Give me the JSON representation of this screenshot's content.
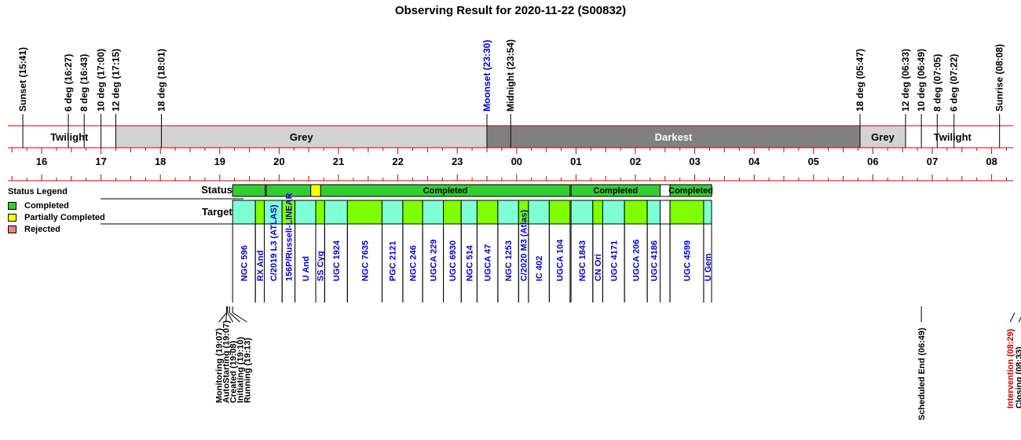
{
  "title": "Observing Result for 2020-11-22 (S00832)",
  "colors": {
    "axis_red": "#cc0000",
    "grey": "#d3d3d3",
    "darkest": "#808080",
    "completed": "#33cc33",
    "partial": "#ffff00",
    "rejected": "#f08080",
    "target_cyan": "#7fffd4",
    "target_lime": "#7fff00",
    "moonset_blue": "#0000cc",
    "intervention_red": "#cc0000",
    "target_label_blue": "#0000cc"
  },
  "legend": {
    "title": "Status Legend",
    "items": [
      {
        "label": "Completed",
        "color": "#33cc33"
      },
      {
        "label": "Partially Completed",
        "color": "#ffff00"
      },
      {
        "label": "Rejected",
        "color": "#f08080"
      }
    ]
  },
  "row_labels": {
    "status": "Status",
    "targets": "Targets"
  },
  "chart_data": {
    "type": "timeline",
    "title": "Observing Result for 2020-11-22 (S00832)",
    "hour_ticks": [
      "16",
      "17",
      "18",
      "19",
      "20",
      "21",
      "22",
      "23",
      "00",
      "01",
      "02",
      "03",
      "04",
      "05",
      "06",
      "07",
      "08"
    ],
    "top_events": [
      {
        "label": "Sunset (15:41)",
        "t": "15:41"
      },
      {
        "label": "6 deg (16:27)",
        "t": "16:27"
      },
      {
        "label": "8 deg (16:43)",
        "t": "16:43"
      },
      {
        "label": "10 deg (17:00)",
        "t": "17:00"
      },
      {
        "label": "12 deg (17:15)",
        "t": "17:15"
      },
      {
        "label": "18 deg (18:01)",
        "t": "18:01"
      },
      {
        "label": "Moonset (23:30)",
        "t": "23:30",
        "color": "#0000cc"
      },
      {
        "label": "Midnight (23:54)",
        "t": "23:54"
      },
      {
        "label": "18 deg (05:47)",
        "t": "05:47"
      },
      {
        "label": "12 deg (06:33)",
        "t": "06:33"
      },
      {
        "label": "10 deg (06:49)",
        "t": "06:49"
      },
      {
        "label": "8 deg (07:05)",
        "t": "07:05"
      },
      {
        "label": "6 deg (07:22)",
        "t": "07:22"
      },
      {
        "label": "Sunrise (08:08)",
        "t": "08:08"
      }
    ],
    "sky_bands": [
      {
        "label": "Twilight",
        "start": "15:41",
        "end": "17:15",
        "shade": "white"
      },
      {
        "label": "Grey",
        "start": "17:15",
        "end": "23:30",
        "shade": "grey"
      },
      {
        "label": "Darkest",
        "start": "23:30",
        "end": "05:47",
        "shade": "darkest"
      },
      {
        "label": "Grey",
        "start": "05:47",
        "end": "06:33",
        "shade": "grey"
      },
      {
        "label": "Twilight",
        "start": "06:33",
        "end": "08:08",
        "shade": "white"
      }
    ],
    "status_segments": [
      {
        "label": "",
        "start": "19:13",
        "end": "19:46",
        "status": "completed"
      },
      {
        "label": "",
        "start": "19:47",
        "end": "20:32",
        "status": "completed"
      },
      {
        "label": "",
        "start": "20:32",
        "end": "20:42",
        "status": "partial"
      },
      {
        "label": "Completed",
        "start": "20:42",
        "end": "00:54",
        "status": "completed"
      },
      {
        "label": "Completed",
        "start": "00:55",
        "end": "02:25",
        "status": "completed"
      },
      {
        "label": "",
        "start": "02:25",
        "end": "02:35",
        "status": "none"
      },
      {
        "label": "Completed",
        "start": "02:35",
        "end": "03:17",
        "status": "completed"
      }
    ],
    "targets": [
      {
        "name": "NGC 596",
        "start": "19:13",
        "end": "19:36",
        "fill": "cyan"
      },
      {
        "name": "RX And",
        "start": "19:36",
        "end": "19:45",
        "fill": "lime"
      },
      {
        "name": "C/2019 L3 (ATLAS)",
        "start": "19:45",
        "end": "20:03",
        "fill": "cyan"
      },
      {
        "name": "156P/Russell-LINEAR",
        "start": "20:03",
        "end": "20:16",
        "fill": "lime"
      },
      {
        "name": "U And",
        "start": "20:16",
        "end": "20:37",
        "fill": "cyan"
      },
      {
        "name": "SS Cyg",
        "start": "20:37",
        "end": "20:46",
        "fill": "lime"
      },
      {
        "name": "UGC 1924",
        "start": "20:46",
        "end": "21:09",
        "fill": "cyan"
      },
      {
        "name": "NGC 7635",
        "start": "21:09",
        "end": "21:44",
        "fill": "lime"
      },
      {
        "name": "PGC 2121",
        "start": "21:44",
        "end": "22:05",
        "fill": "cyan"
      },
      {
        "name": "NGC 246",
        "start": "22:05",
        "end": "22:25",
        "fill": "lime"
      },
      {
        "name": "UGCA 229",
        "start": "22:25",
        "end": "22:46",
        "fill": "cyan"
      },
      {
        "name": "UGC 6930",
        "start": "22:46",
        "end": "23:04",
        "fill": "lime"
      },
      {
        "name": "NGC 514",
        "start": "23:04",
        "end": "23:20",
        "fill": "cyan"
      },
      {
        "name": "UGCA 47",
        "start": "23:20",
        "end": "23:41",
        "fill": "lime"
      },
      {
        "name": "NGC 1253",
        "start": "23:41",
        "end": "24:02",
        "fill": "cyan"
      },
      {
        "name": "C/2020 M3 (Atlas)",
        "start": "24:02",
        "end": "24:12",
        "fill": "lime"
      },
      {
        "name": "IC 402",
        "start": "24:12",
        "end": "24:33",
        "fill": "cyan"
      },
      {
        "name": "UGCA 104",
        "start": "24:33",
        "end": "24:54",
        "fill": "lime"
      },
      {
        "name": "NGC 1843",
        "start": "24:55",
        "end": "25:17",
        "fill": "cyan"
      },
      {
        "name": "CN Ori",
        "start": "25:17",
        "end": "25:27",
        "fill": "lime"
      },
      {
        "name": "UGC 4171",
        "start": "25:27",
        "end": "25:49",
        "fill": "cyan"
      },
      {
        "name": "UGCA 206",
        "start": "25:49",
        "end": "26:12",
        "fill": "lime"
      },
      {
        "name": "UGC 4186",
        "start": "26:12",
        "end": "26:25",
        "fill": "cyan"
      },
      {
        "name": "",
        "start": "26:25",
        "end": "26:35",
        "fill": "none"
      },
      {
        "name": "UGC 4599",
        "start": "26:35",
        "end": "27:09",
        "fill": "lime"
      },
      {
        "name": "U Gem",
        "start": "27:09",
        "end": "27:17",
        "fill": "cyan"
      }
    ],
    "bottom_events": [
      {
        "label": "Monitoring (19:07)",
        "t": "19:07"
      },
      {
        "label": "AutoStarting (19:07)",
        "t": "19:07"
      },
      {
        "label": "Created (19:08)",
        "t": "19:08"
      },
      {
        "label": "Initiating (19:10)",
        "t": "19:10"
      },
      {
        "label": "Running (19:13)",
        "t": "19:13"
      },
      {
        "label": "Scheduled End (06:49)",
        "t": "06:49"
      },
      {
        "label": "Intervention (08:29)",
        "t": "08:29",
        "color": "#cc0000"
      },
      {
        "label": "Closing (08:33)",
        "t": "08:33"
      }
    ]
  }
}
